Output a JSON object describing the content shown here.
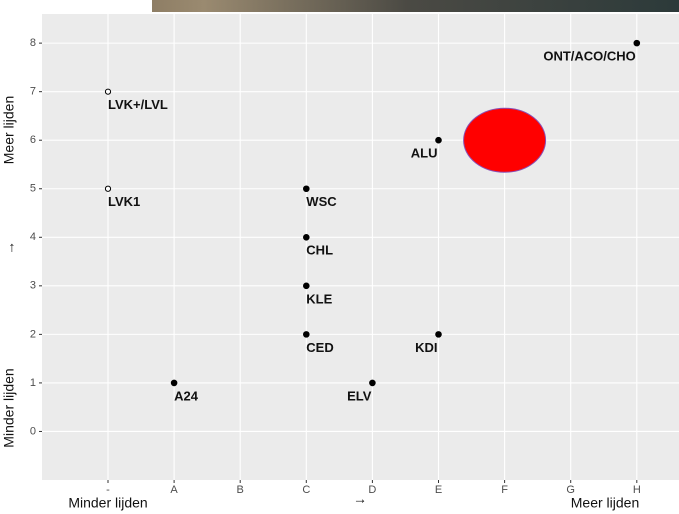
{
  "chart_data": {
    "type": "scatter",
    "categories": [
      "-",
      "A",
      "B",
      "C",
      "D",
      "E",
      "F",
      "G",
      "H"
    ],
    "ylim": [
      -1,
      8.6
    ],
    "yticks": [
      0,
      1,
      2,
      3,
      4,
      5,
      6,
      7,
      8
    ],
    "grid": true,
    "points": [
      {
        "label": "LVK+/LVL",
        "x": "-",
        "y": 7,
        "marker": "open"
      },
      {
        "label": "LVK1",
        "x": "-",
        "y": 5,
        "marker": "open"
      },
      {
        "label": "A24",
        "x": "A",
        "y": 1,
        "marker": "filled"
      },
      {
        "label": "WSC",
        "x": "C",
        "y": 5,
        "marker": "filled"
      },
      {
        "label": "CHL",
        "x": "C",
        "y": 4,
        "marker": "filled"
      },
      {
        "label": "KLE",
        "x": "C",
        "y": 3,
        "marker": "filled"
      },
      {
        "label": "CED",
        "x": "C",
        "y": 2,
        "marker": "filled"
      },
      {
        "label": "ELV",
        "x": "D",
        "y": 1,
        "marker": "filled"
      },
      {
        "label": "KDI",
        "x": "E",
        "y": 2,
        "marker": "filled"
      },
      {
        "label": "ALU",
        "x": "E",
        "y": 6,
        "marker": "filled"
      },
      {
        "label": "ONT/ACO/CHO",
        "x": "H",
        "y": 8,
        "marker": "filled"
      }
    ],
    "highlight": {
      "x": "F",
      "y": 6,
      "color": "#ff0000"
    },
    "ylabel_top": "Meer lijden",
    "ylabel_arrow": "↑",
    "ylabel_bottom": "Minder lijden",
    "xlabel_left": "Minder lijden",
    "xlabel_arrow": "→",
    "xlabel_right": "Meer lijden"
  }
}
